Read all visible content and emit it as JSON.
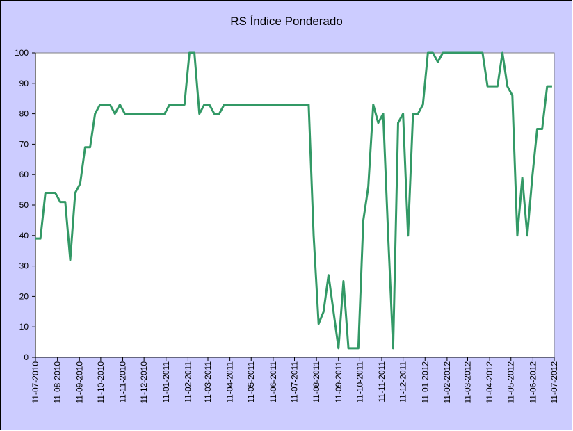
{
  "chart_data": {
    "type": "line",
    "title": "RS Índice Ponderado",
    "x": [
      "2010-07-11",
      "2010-07-18",
      "2010-07-25",
      "2010-08-08",
      "2010-08-15",
      "2010-08-22",
      "2010-08-29",
      "2010-09-05",
      "2010-09-12",
      "2010-09-19",
      "2010-09-26",
      "2010-10-03",
      "2010-10-10",
      "2010-10-24",
      "2010-10-31",
      "2010-11-07",
      "2010-11-14",
      "2011-01-09",
      "2011-01-16",
      "2011-02-06",
      "2011-02-13",
      "2011-02-20",
      "2011-02-27",
      "2011-03-06",
      "2011-03-13",
      "2011-03-20",
      "2011-03-27",
      "2011-04-03",
      "2011-07-31",
      "2011-08-07",
      "2011-08-14",
      "2011-08-21",
      "2011-08-28",
      "2011-09-04",
      "2011-09-11",
      "2011-09-18",
      "2011-09-25",
      "2011-10-09",
      "2011-10-16",
      "2011-10-23",
      "2011-10-30",
      "2011-11-06",
      "2011-11-13",
      "2011-11-20",
      "2011-11-27",
      "2011-12-04",
      "2011-12-11",
      "2011-12-18",
      "2011-12-25",
      "2012-01-01",
      "2012-01-08",
      "2012-01-15",
      "2012-01-22",
      "2012-01-29",
      "2012-02-05",
      "2012-04-01",
      "2012-04-08",
      "2012-04-22",
      "2012-04-29",
      "2012-05-06",
      "2012-05-13",
      "2012-05-20",
      "2012-05-27",
      "2012-06-03",
      "2012-06-10",
      "2012-06-17",
      "2012-06-24",
      "2012-07-01",
      "2012-07-08"
    ],
    "values": [
      39,
      39,
      54,
      54,
      51,
      51,
      32,
      54,
      57,
      69,
      69,
      80,
      83,
      83,
      80,
      83,
      80,
      80,
      83,
      83,
      100,
      100,
      80,
      83,
      83,
      80,
      80,
      83,
      83,
      40,
      11,
      15,
      27,
      15,
      3,
      25,
      3,
      3,
      45,
      56,
      83,
      77,
      80,
      40,
      3,
      77,
      80,
      40,
      80,
      80,
      83,
      100,
      100,
      97,
      100,
      100,
      89,
      89,
      100,
      89,
      86,
      40,
      59,
      40,
      59,
      75,
      75,
      89,
      89
    ],
    "color": "#339966",
    "xlim": [
      "2010-07-11",
      "2012-07-11"
    ],
    "xticks": [
      {
        "value": "2010-07-11",
        "label": "11-07-2010"
      },
      {
        "value": "2010-08-11",
        "label": "11-08-2010"
      },
      {
        "value": "2010-09-11",
        "label": "11-09-2010"
      },
      {
        "value": "2010-10-11",
        "label": "11-10-2010"
      },
      {
        "value": "2010-11-11",
        "label": "11-11-2010"
      },
      {
        "value": "2010-12-11",
        "label": "11-12-2010"
      },
      {
        "value": "2011-01-11",
        "label": "11-01-2011"
      },
      {
        "value": "2011-02-11",
        "label": "11-02-2011"
      },
      {
        "value": "2011-03-11",
        "label": "11-03-2011"
      },
      {
        "value": "2011-04-11",
        "label": "11-04-2011"
      },
      {
        "value": "2011-05-11",
        "label": "11-05-2011"
      },
      {
        "value": "2011-06-11",
        "label": "11-06-2011"
      },
      {
        "value": "2011-07-11",
        "label": "11-07-2011"
      },
      {
        "value": "2011-08-11",
        "label": "11-08-2011"
      },
      {
        "value": "2011-09-11",
        "label": "11-09-2011"
      },
      {
        "value": "2011-10-11",
        "label": "11-10-2011"
      },
      {
        "value": "2011-11-11",
        "label": "11-11-2011"
      },
      {
        "value": "2011-12-11",
        "label": "11-12-2011"
      },
      {
        "value": "2012-01-11",
        "label": "11-01-2012"
      },
      {
        "value": "2012-02-11",
        "label": "11-02-2012"
      },
      {
        "value": "2012-03-11",
        "label": "11-03-2012"
      },
      {
        "value": "2012-04-11",
        "label": "11-04-2012"
      },
      {
        "value": "2012-05-11",
        "label": "11-05-2012"
      },
      {
        "value": "2012-06-11",
        "label": "11-06-2012"
      },
      {
        "value": "2012-07-11",
        "label": "11-07-2012"
      }
    ],
    "ylim": [
      0,
      100
    ],
    "yticks": [
      0,
      10,
      20,
      30,
      40,
      50,
      60,
      70,
      80,
      90,
      100
    ],
    "grid": false
  }
}
